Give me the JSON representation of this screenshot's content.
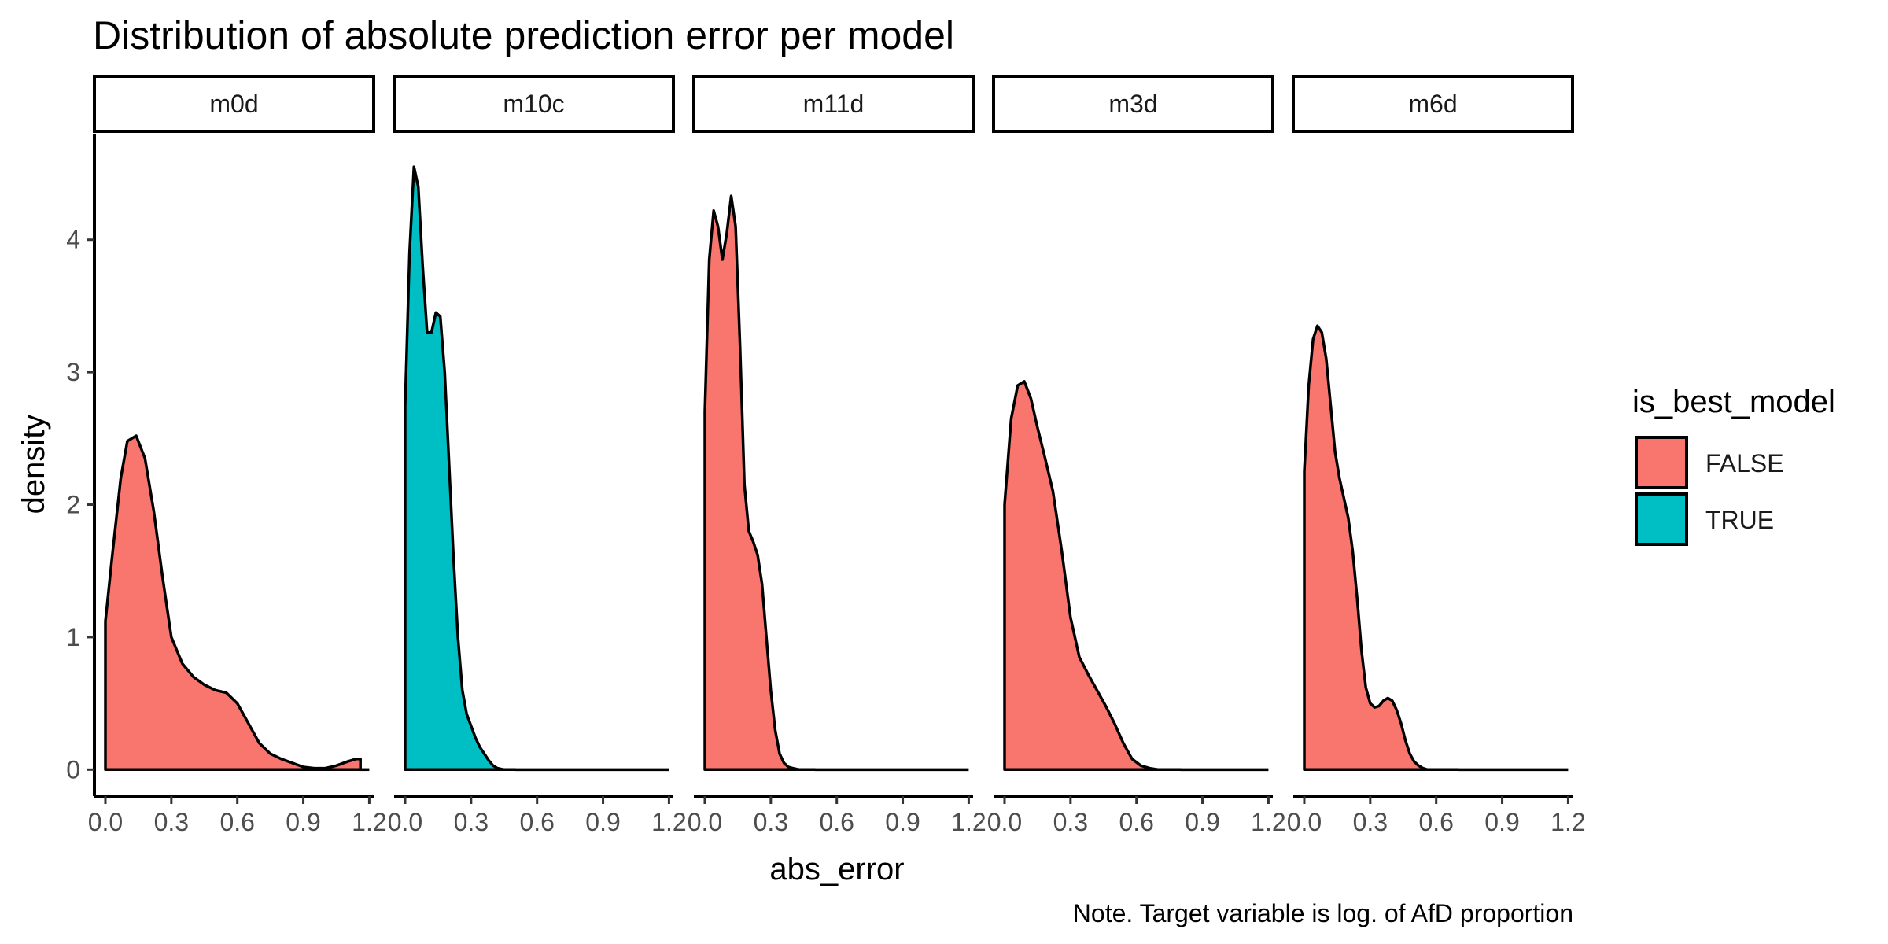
{
  "chart_data": {
    "type": "area",
    "title": "Distribution of absolute prediction error per model",
    "xlabel": "abs_error",
    "ylabel": "density",
    "caption": "Note. Target variable is log. of AfD proportion",
    "xlim": [
      -0.05,
      1.22
    ],
    "ylim": [
      -0.2,
      4.8
    ],
    "x_ticks": [
      0.0,
      0.3,
      0.6,
      0.9,
      1.2
    ],
    "x_tick_labels": [
      "0.0",
      "0.3",
      "0.6",
      "0.9",
      "1.2"
    ],
    "y_ticks": [
      0,
      1,
      2,
      3,
      4
    ],
    "y_tick_labels": [
      "0",
      "1",
      "2",
      "3",
      "4"
    ],
    "grid": false,
    "legend": {
      "title": "is_best_model",
      "position": "right",
      "entries": [
        {
          "label": "FALSE",
          "color": "#F8766D"
        },
        {
          "label": "TRUE",
          "color": "#00BFC4"
        }
      ]
    },
    "panels": [
      {
        "name": "m0d",
        "is_best_model": "FALSE",
        "x": [
          0.0,
          0.03,
          0.07,
          0.1,
          0.14,
          0.18,
          0.22,
          0.26,
          0.3,
          0.35,
          0.4,
          0.45,
          0.5,
          0.55,
          0.6,
          0.65,
          0.7,
          0.75,
          0.8,
          0.85,
          0.9,
          0.95,
          1.0,
          1.05,
          1.1,
          1.14,
          1.16,
          1.16
        ],
        "y": [
          1.12,
          1.6,
          2.2,
          2.48,
          2.52,
          2.35,
          1.95,
          1.45,
          1.0,
          0.8,
          0.7,
          0.64,
          0.6,
          0.58,
          0.5,
          0.35,
          0.2,
          0.12,
          0.08,
          0.05,
          0.02,
          0.01,
          0.01,
          0.03,
          0.06,
          0.08,
          0.08,
          0.0
        ]
      },
      {
        "name": "m10c",
        "is_best_model": "TRUE",
        "x": [
          0.0,
          0.02,
          0.04,
          0.06,
          0.08,
          0.1,
          0.12,
          0.14,
          0.16,
          0.18,
          0.2,
          0.22,
          0.24,
          0.26,
          0.28,
          0.3,
          0.32,
          0.34,
          0.36,
          0.38,
          0.4,
          0.42,
          0.45,
          0.5
        ],
        "y": [
          2.75,
          3.9,
          4.55,
          4.4,
          3.8,
          3.3,
          3.3,
          3.45,
          3.42,
          3.0,
          2.3,
          1.6,
          1.0,
          0.6,
          0.42,
          0.33,
          0.24,
          0.17,
          0.12,
          0.07,
          0.03,
          0.01,
          0.0,
          0.0
        ]
      },
      {
        "name": "m11d",
        "is_best_model": "FALSE",
        "x": [
          0.0,
          0.02,
          0.04,
          0.06,
          0.08,
          0.1,
          0.12,
          0.14,
          0.16,
          0.18,
          0.2,
          0.22,
          0.24,
          0.26,
          0.28,
          0.3,
          0.32,
          0.34,
          0.36,
          0.38,
          0.4,
          0.43,
          0.5
        ],
        "y": [
          2.7,
          3.85,
          4.22,
          4.1,
          3.85,
          4.05,
          4.33,
          4.1,
          3.2,
          2.15,
          1.8,
          1.72,
          1.62,
          1.4,
          1.0,
          0.6,
          0.3,
          0.12,
          0.05,
          0.02,
          0.01,
          0.0,
          0.0
        ]
      },
      {
        "name": "m3d",
        "is_best_model": "FALSE",
        "x": [
          0.0,
          0.03,
          0.06,
          0.09,
          0.12,
          0.15,
          0.18,
          0.22,
          0.26,
          0.3,
          0.34,
          0.38,
          0.42,
          0.46,
          0.5,
          0.54,
          0.58,
          0.62,
          0.66,
          0.7,
          0.75,
          0.8
        ],
        "y": [
          2.0,
          2.65,
          2.9,
          2.93,
          2.8,
          2.58,
          2.38,
          2.1,
          1.65,
          1.15,
          0.85,
          0.72,
          0.6,
          0.48,
          0.35,
          0.2,
          0.08,
          0.03,
          0.01,
          0.0,
          0.0,
          0.0
        ]
      },
      {
        "name": "m6d",
        "is_best_model": "FALSE",
        "x": [
          0.0,
          0.02,
          0.04,
          0.06,
          0.08,
          0.1,
          0.12,
          0.14,
          0.16,
          0.18,
          0.2,
          0.22,
          0.24,
          0.26,
          0.28,
          0.3,
          0.32,
          0.34,
          0.36,
          0.38,
          0.4,
          0.42,
          0.44,
          0.46,
          0.48,
          0.5,
          0.52,
          0.54,
          0.56,
          0.58,
          0.6,
          0.63,
          0.7
        ],
        "y": [
          2.25,
          2.9,
          3.25,
          3.35,
          3.3,
          3.1,
          2.75,
          2.4,
          2.2,
          2.05,
          1.9,
          1.65,
          1.3,
          0.9,
          0.62,
          0.5,
          0.47,
          0.48,
          0.52,
          0.54,
          0.52,
          0.45,
          0.35,
          0.22,
          0.12,
          0.06,
          0.03,
          0.01,
          0.0,
          0.0,
          0.0,
          0.0,
          0.0
        ]
      }
    ]
  }
}
